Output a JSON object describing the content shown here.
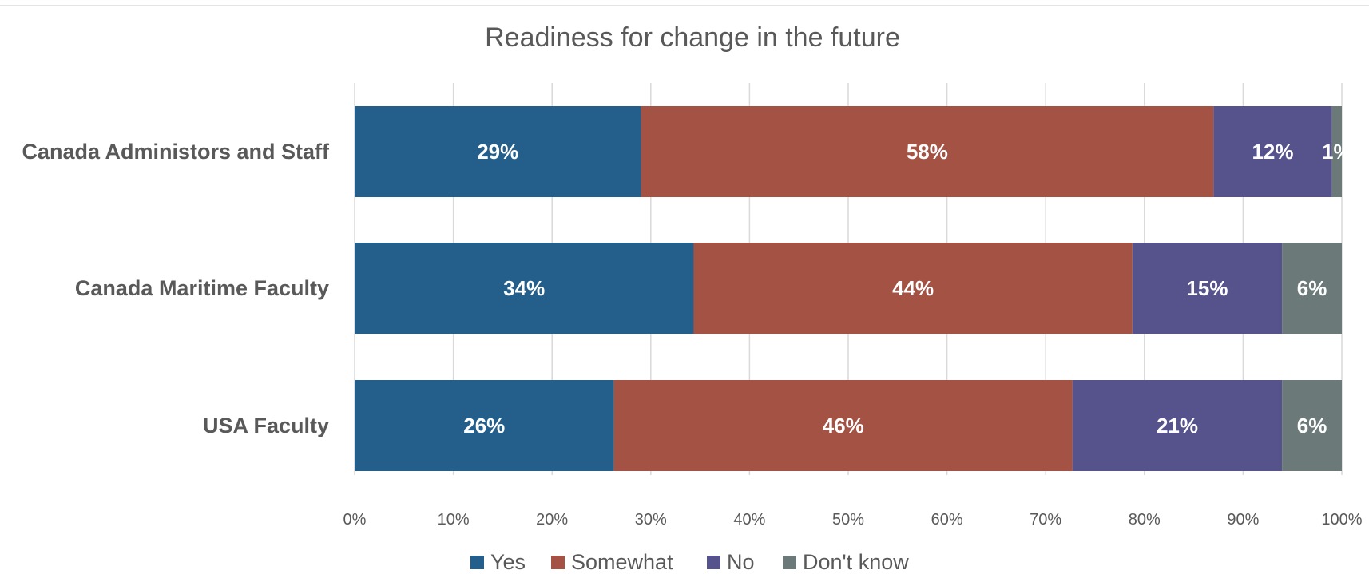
{
  "chart_data": {
    "type": "bar",
    "orientation": "horizontal",
    "stacked": "percent",
    "title": "Readiness for change in the future",
    "categories": [
      "Canada Administors and Staff",
      "Canada Maritime Faculty",
      "USA Faculty"
    ],
    "series": [
      {
        "name": "Yes",
        "color": "#235F8A",
        "values": [
          29,
          34,
          26
        ],
        "labels": [
          "29%",
          "34%",
          "26%"
        ]
      },
      {
        "name": "Somewhat",
        "color": "#A35244",
        "values": [
          58,
          44,
          46
        ],
        "labels": [
          "58%",
          "44%",
          "46%"
        ]
      },
      {
        "name": "No",
        "color": "#56528C",
        "values": [
          12,
          15,
          21
        ],
        "labels": [
          "12%",
          "15%",
          "21%"
        ]
      },
      {
        "name": "Don't know",
        "color": "#6B7979",
        "values": [
          1,
          6,
          6
        ],
        "labels": [
          "1%",
          "6%",
          "6%"
        ]
      }
    ],
    "x_ticks": [
      "0%",
      "10%",
      "20%",
      "30%",
      "40%",
      "50%",
      "60%",
      "70%",
      "80%",
      "90%",
      "100%"
    ],
    "xlim": [
      0,
      100
    ],
    "grid": true,
    "legend_position": "bottom"
  }
}
